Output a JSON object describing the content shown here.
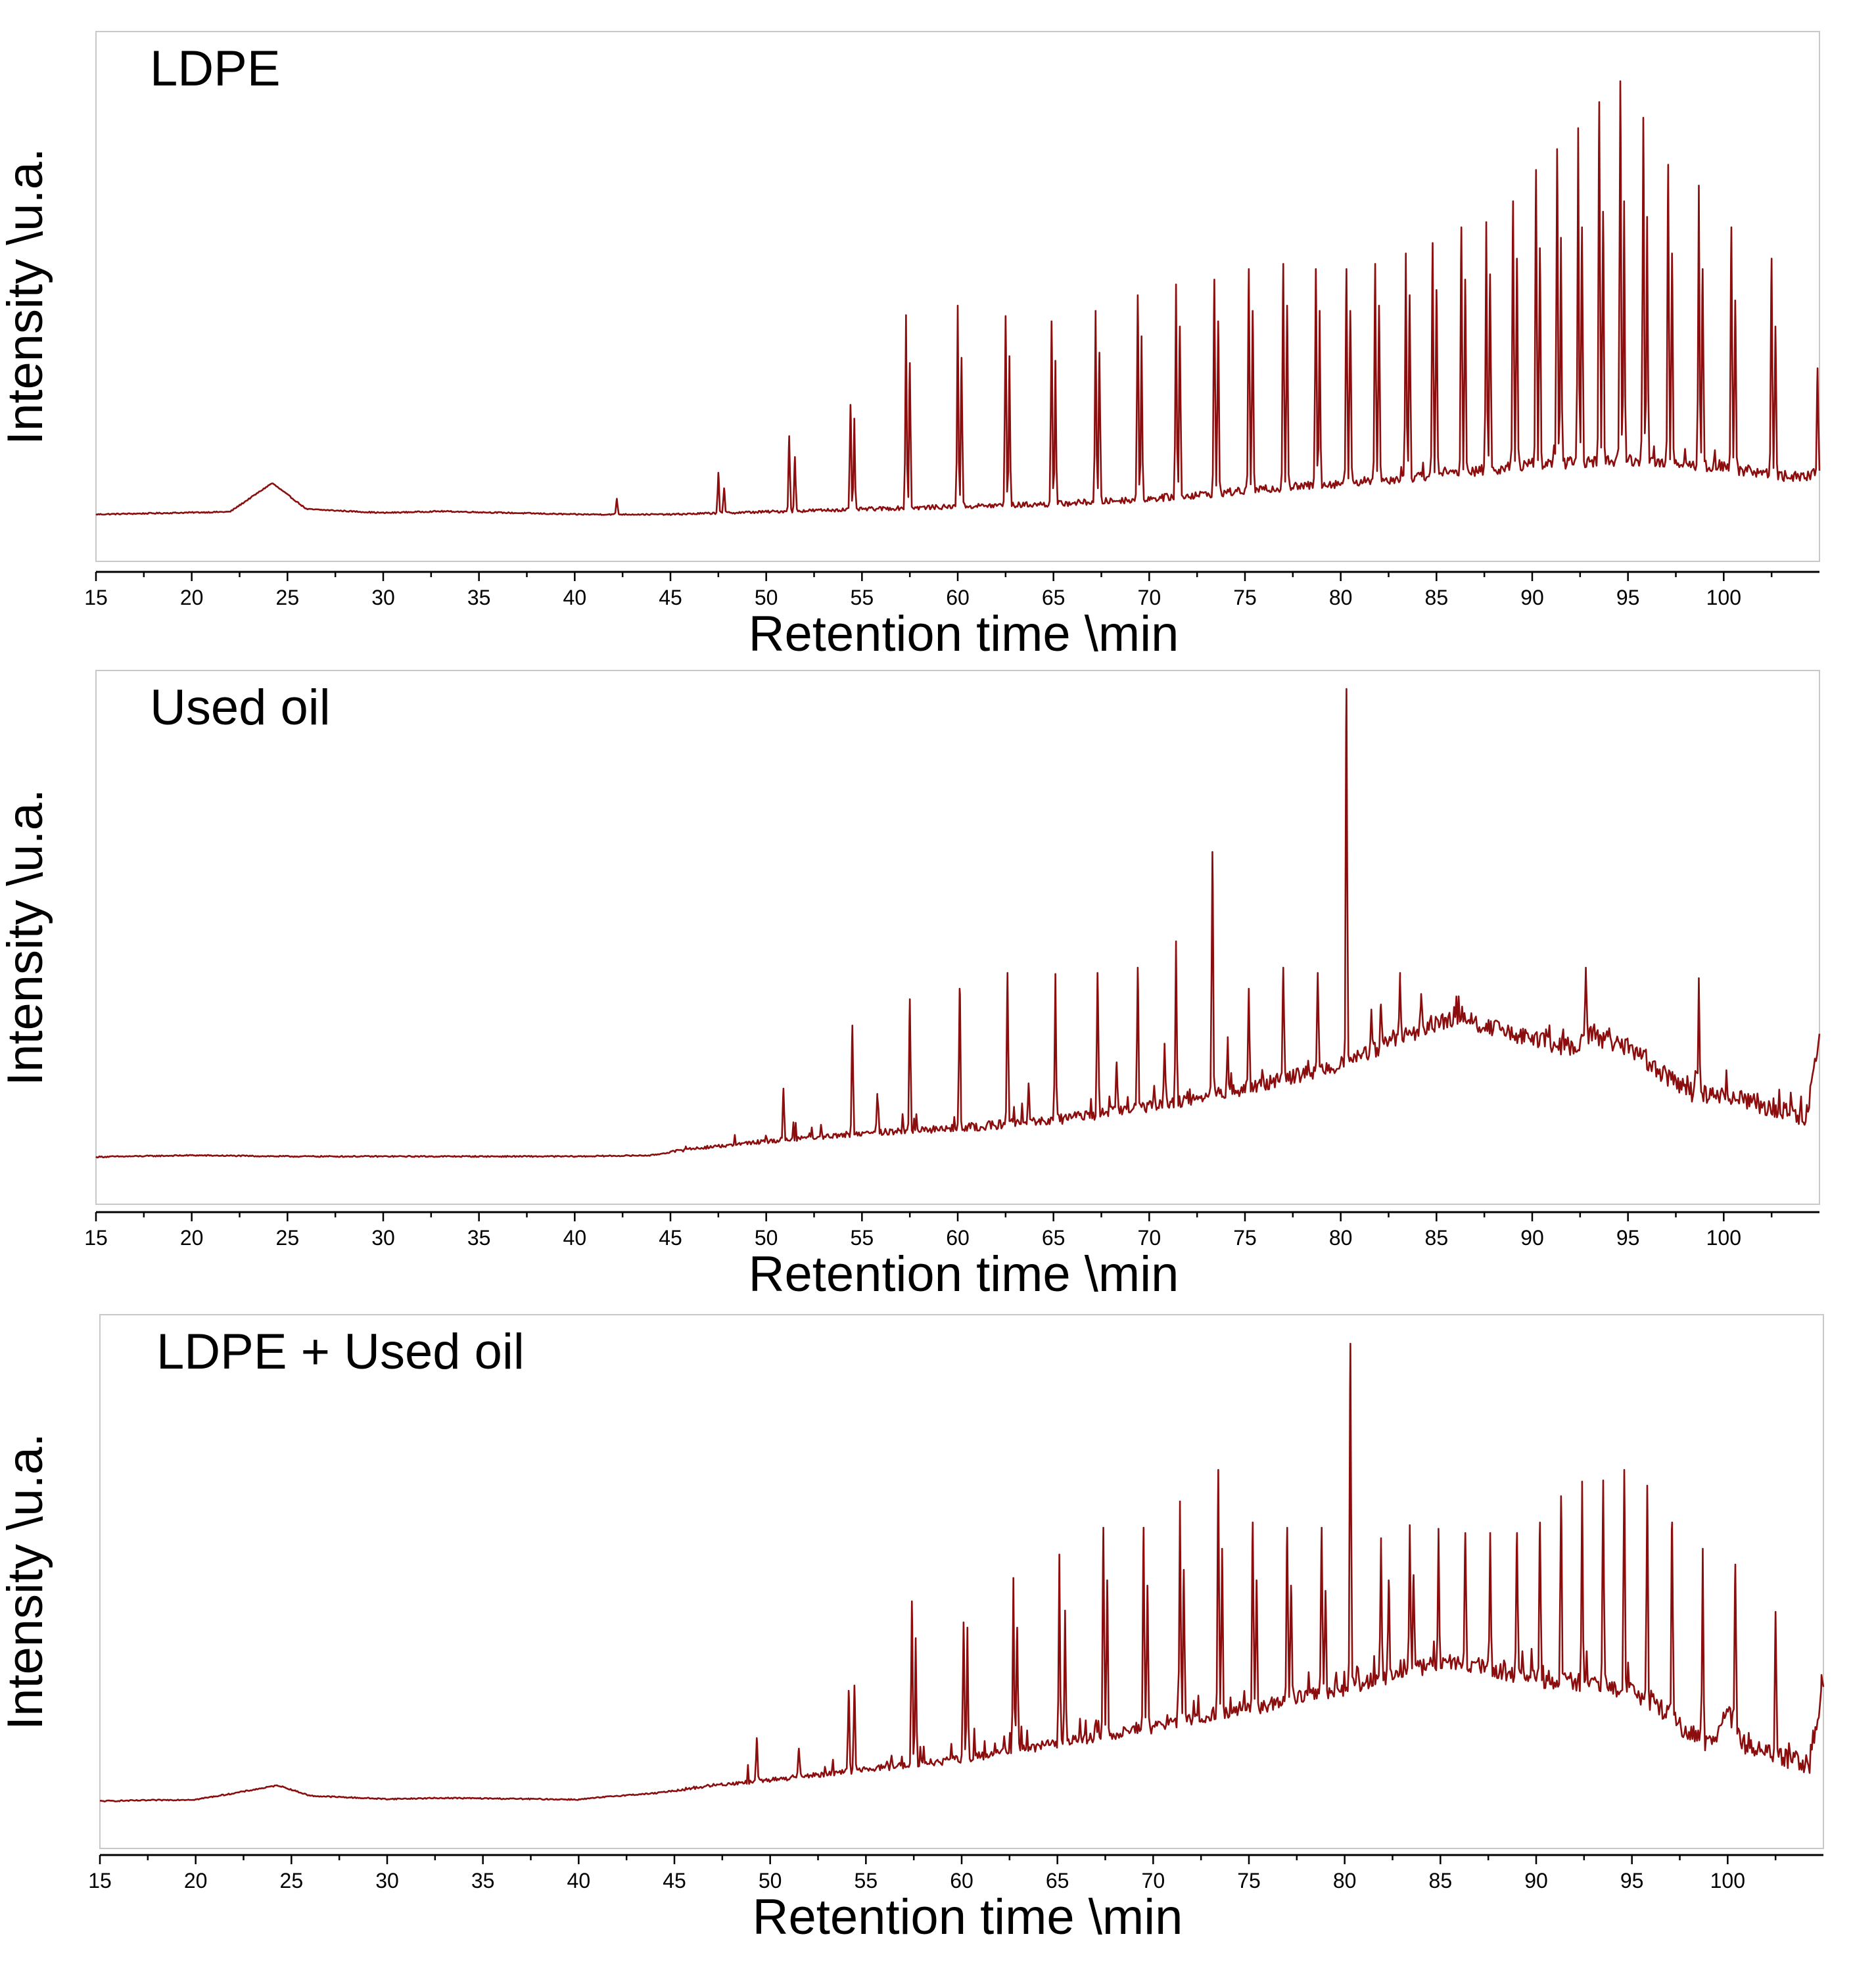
{
  "colors": {
    "trace": "#8b0d0d",
    "axis": "#000000",
    "frame": "#c8c8c8"
  },
  "chart_data": [
    {
      "type": "line",
      "title": "LDPE",
      "xlabel": "Retention time \\min",
      "ylabel": "Intensity \\u.a.",
      "xlim": [
        15,
        105
      ],
      "ylim": [
        0,
        100
      ],
      "x_ticks": [
        15,
        20,
        25,
        30,
        35,
        40,
        45,
        50,
        55,
        60,
        65,
        70,
        75,
        80,
        85,
        90,
        95,
        100
      ],
      "baseline": [
        [
          15,
          9
        ],
        [
          22,
          9.5
        ],
        [
          24.2,
          15
        ],
        [
          26,
          10
        ],
        [
          30,
          9.3
        ],
        [
          33,
          9.6
        ],
        [
          40,
          9
        ],
        [
          45,
          9
        ],
        [
          50,
          9.5
        ],
        [
          55,
          10
        ],
        [
          60,
          10.5
        ],
        [
          65,
          11
        ],
        [
          70,
          12
        ],
        [
          75,
          13.5
        ],
        [
          80,
          15
        ],
        [
          85,
          16.5
        ],
        [
          90,
          18.5
        ],
        [
          95,
          19.5
        ],
        [
          100,
          18
        ],
        [
          104,
          16
        ],
        [
          105,
          17
        ]
      ],
      "peaks": [
        [
          42.2,
          12
        ],
        [
          47.5,
          17
        ],
        [
          47.8,
          14
        ],
        [
          51.2,
          24
        ],
        [
          51.5,
          20
        ],
        [
          54.4,
          30
        ],
        [
          54.6,
          27
        ],
        [
          57.3,
          47
        ],
        [
          57.5,
          38
        ],
        [
          60,
          49
        ],
        [
          60.2,
          39
        ],
        [
          62.5,
          47
        ],
        [
          62.7,
          39
        ],
        [
          64.9,
          46
        ],
        [
          65.1,
          38
        ],
        [
          67.2,
          48
        ],
        [
          67.4,
          40
        ],
        [
          69.4,
          51
        ],
        [
          69.6,
          43
        ],
        [
          71.4,
          53
        ],
        [
          71.6,
          45
        ],
        [
          73.4,
          54
        ],
        [
          73.6,
          46
        ],
        [
          75.2,
          56
        ],
        [
          75.4,
          48
        ],
        [
          77,
          57
        ],
        [
          77.2,
          49
        ],
        [
          78.7,
          56
        ],
        [
          78.9,
          48
        ],
        [
          80.3,
          56
        ],
        [
          80.5,
          48
        ],
        [
          81.8,
          57
        ],
        [
          82,
          49
        ],
        [
          83.4,
          59
        ],
        [
          83.6,
          51
        ],
        [
          84.8,
          61
        ],
        [
          85,
          52
        ],
        [
          86.3,
          64
        ],
        [
          86.5,
          54
        ],
        [
          87.6,
          65
        ],
        [
          87.8,
          55
        ],
        [
          89,
          69
        ],
        [
          89.2,
          58
        ],
        [
          90.2,
          75
        ],
        [
          90.4,
          60
        ],
        [
          91.3,
          79
        ],
        [
          91.5,
          62
        ],
        [
          92.4,
          83
        ],
        [
          92.6,
          64
        ],
        [
          93.5,
          88
        ],
        [
          93.7,
          67
        ],
        [
          94.6,
          92
        ],
        [
          94.8,
          69
        ],
        [
          95.8,
          85
        ],
        [
          96,
          66
        ],
        [
          97.1,
          76
        ],
        [
          97.3,
          59
        ],
        [
          98.7,
          72
        ],
        [
          98.9,
          56
        ],
        [
          100.4,
          64
        ],
        [
          100.6,
          50
        ],
        [
          102.5,
          58
        ],
        [
          102.7,
          45
        ],
        [
          104.9,
          37
        ]
      ]
    },
    {
      "type": "line",
      "title": "Used oil",
      "xlabel": "Retention time \\min",
      "ylabel": "Intensity \\u.a.",
      "xlim": [
        15,
        105
      ],
      "ylim": [
        0,
        100
      ],
      "x_ticks": [
        15,
        20,
        25,
        30,
        35,
        40,
        45,
        50,
        55,
        60,
        65,
        70,
        75,
        80,
        85,
        90,
        95,
        100
      ],
      "baseline": [
        [
          15,
          9
        ],
        [
          20,
          9.3
        ],
        [
          25,
          9.1
        ],
        [
          30,
          9.1
        ],
        [
          40,
          9.1
        ],
        [
          44,
          9.3
        ],
        [
          46,
          10.5
        ],
        [
          50,
          12
        ],
        [
          55,
          13.5
        ],
        [
          60,
          14.5
        ],
        [
          65,
          16
        ],
        [
          70,
          18.5
        ],
        [
          75,
          22
        ],
        [
          80,
          26.5
        ],
        [
          84,
          33
        ],
        [
          86,
          35.5
        ],
        [
          88,
          33.5
        ],
        [
          90,
          31
        ],
        [
          92,
          30
        ],
        [
          93,
          32
        ],
        [
          95,
          30
        ],
        [
          97,
          24.5
        ],
        [
          98.4,
          21
        ],
        [
          99.5,
          20.5
        ],
        [
          100,
          21
        ],
        [
          102,
          19
        ],
        [
          104.3,
          16.5
        ],
        [
          105,
          32
        ]
      ],
      "peaks": [
        [
          45.8,
          11
        ],
        [
          50.9,
          22
        ],
        [
          54.5,
          34
        ],
        [
          55.8,
          21
        ],
        [
          57.5,
          39
        ],
        [
          60.1,
          41
        ],
        [
          62.6,
          44
        ],
        [
          63.7,
          23
        ],
        [
          65.1,
          43
        ],
        [
          67.3,
          44
        ],
        [
          68.3,
          27
        ],
        [
          69.4,
          45
        ],
        [
          70.8,
          30
        ],
        [
          71.4,
          50
        ],
        [
          73.3,
          67
        ],
        [
          74.1,
          31
        ],
        [
          75.2,
          41
        ],
        [
          77,
          45
        ],
        [
          78.8,
          44
        ],
        [
          80.3,
          98
        ],
        [
          81.6,
          37
        ],
        [
          82.1,
          38
        ],
        [
          83.1,
          44
        ],
        [
          84.2,
          40
        ],
        [
          92.8,
          45
        ],
        [
          98.7,
          43
        ]
      ]
    },
    {
      "type": "line",
      "title": "LDPE + Used oil",
      "xlabel": "Retention time \\min",
      "ylabel": "Intensity \\u.a.",
      "xlim": [
        15,
        105
      ],
      "ylim": [
        0,
        100
      ],
      "x_ticks": [
        15,
        20,
        25,
        30,
        35,
        40,
        45,
        50,
        55,
        60,
        65,
        70,
        75,
        80,
        85,
        90,
        95,
        100
      ],
      "baseline": [
        [
          15,
          9
        ],
        [
          20,
          9.3
        ],
        [
          22,
          10.5
        ],
        [
          24.3,
          12
        ],
        [
          26,
          10
        ],
        [
          30,
          9.4
        ],
        [
          33,
          9.6
        ],
        [
          40,
          9.3
        ],
        [
          42,
          10
        ],
        [
          44,
          10.5
        ],
        [
          47,
          12
        ],
        [
          50,
          13
        ],
        [
          55,
          15
        ],
        [
          60,
          17
        ],
        [
          65,
          20
        ],
        [
          70,
          23
        ],
        [
          75,
          26.5
        ],
        [
          80,
          30.5
        ],
        [
          84,
          34.5
        ],
        [
          86,
          35.5
        ],
        [
          88,
          34
        ],
        [
          90,
          32.5
        ],
        [
          92,
          31.5
        ],
        [
          94,
          31
        ],
        [
          96,
          28
        ],
        [
          98,
          22
        ],
        [
          99.2,
          19.5
        ],
        [
          100,
          26
        ],
        [
          100.8,
          20
        ],
        [
          102,
          18
        ],
        [
          104.3,
          16
        ],
        [
          105,
          30
        ]
      ],
      "peaks": [
        [
          49.3,
          21
        ],
        [
          51.5,
          19
        ],
        [
          54.1,
          30
        ],
        [
          54.4,
          31
        ],
        [
          57.4,
          47
        ],
        [
          57.6,
          40
        ],
        [
          60.1,
          43
        ],
        [
          60.3,
          42
        ],
        [
          62.7,
          51
        ],
        [
          62.9,
          42
        ],
        [
          65.1,
          55
        ],
        [
          65.4,
          45
        ],
        [
          67.4,
          61
        ],
        [
          67.6,
          51
        ],
        [
          69.5,
          61
        ],
        [
          69.7,
          50
        ],
        [
          71.4,
          66
        ],
        [
          71.6,
          53
        ],
        [
          73.4,
          72
        ],
        [
          73.6,
          57
        ],
        [
          75.2,
          62
        ],
        [
          75.4,
          51
        ],
        [
          77,
          61
        ],
        [
          77.2,
          50
        ],
        [
          78.8,
          61
        ],
        [
          79,
          49
        ],
        [
          80.3,
          96
        ],
        [
          81.9,
          59
        ],
        [
          82.3,
          51
        ],
        [
          83.4,
          61
        ],
        [
          83.6,
          52
        ],
        [
          84.9,
          60
        ],
        [
          86.3,
          60
        ],
        [
          87.6,
          60
        ],
        [
          89,
          60
        ],
        [
          90.2,
          62
        ],
        [
          91.3,
          67
        ],
        [
          92.4,
          69
        ],
        [
          93.5,
          70
        ],
        [
          94.6,
          72
        ],
        [
          95.8,
          69
        ],
        [
          97.1,
          62
        ],
        [
          98.7,
          57
        ],
        [
          100.4,
          54
        ],
        [
          102.5,
          45
        ],
        [
          104.9,
          33
        ]
      ]
    }
  ]
}
